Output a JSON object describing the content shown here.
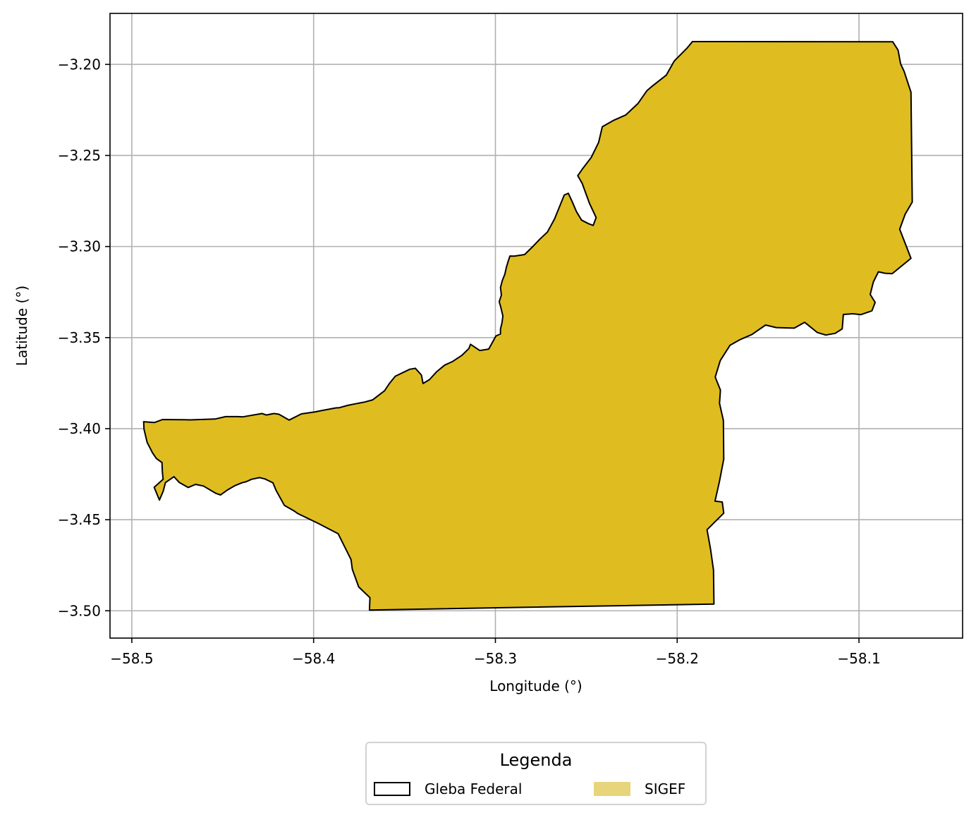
{
  "chart_data": {
    "type": "map",
    "xlabel": "Longitude (°)",
    "ylabel": "Latitude (°)",
    "xlim": [
      -58.512,
      -58.043
    ],
    "ylim": [
      -3.515,
      -3.172
    ],
    "x_ticks": [
      -58.5,
      -58.4,
      -58.3,
      -58.2,
      -58.1
    ],
    "x_tick_labels": [
      "−58.5",
      "−58.4",
      "−58.3",
      "−58.2",
      "−58.1"
    ],
    "y_ticks": [
      -3.2,
      -3.25,
      -3.3,
      -3.35,
      -3.4,
      -3.45,
      -3.5
    ],
    "y_tick_labels": [
      "−3.20",
      "−3.25",
      "−3.30",
      "−3.35",
      "−3.40",
      "−3.45",
      "−3.50"
    ],
    "grid": true,
    "legend": {
      "title": "Legenda",
      "placement": "bottom-center",
      "entries": [
        {
          "label": "Gleba Federal",
          "style": "outline",
          "color": "#000000"
        },
        {
          "label": "SIGEF",
          "style": "fill",
          "color": "#e8d47a"
        }
      ]
    },
    "layers": [
      {
        "name": "Gleba Federal",
        "fill_color": "#dfbd21",
        "edge_color": "#000000",
        "coordinates": [
          [
            -58.1916,
            -3.1875
          ],
          [
            -58.0814,
            -3.1876
          ],
          [
            -58.0785,
            -3.1922
          ],
          [
            -58.0771,
            -3.1997
          ],
          [
            -58.0752,
            -3.2038
          ],
          [
            -58.0714,
            -3.2153
          ],
          [
            -58.0707,
            -3.2756
          ],
          [
            -58.0746,
            -3.2823
          ],
          [
            -58.0776,
            -3.2905
          ],
          [
            -58.0714,
            -3.3065
          ],
          [
            -58.0817,
            -3.3149
          ],
          [
            -58.0856,
            -3.3147
          ],
          [
            -58.0893,
            -3.3139
          ],
          [
            -58.0921,
            -3.3195
          ],
          [
            -58.0938,
            -3.3263
          ],
          [
            -58.0911,
            -3.3307
          ],
          [
            -58.0929,
            -3.3353
          ],
          [
            -58.0989,
            -3.3374
          ],
          [
            -58.1034,
            -3.3369
          ],
          [
            -58.1086,
            -3.3373
          ],
          [
            -58.1092,
            -3.3452
          ],
          [
            -58.1131,
            -3.3477
          ],
          [
            -58.1183,
            -3.3486
          ],
          [
            -58.1229,
            -3.3472
          ],
          [
            -58.1299,
            -3.3416
          ],
          [
            -58.1356,
            -3.3448
          ],
          [
            -58.1455,
            -3.3445
          ],
          [
            -58.1514,
            -3.3431
          ],
          [
            -58.1589,
            -3.3483
          ],
          [
            -58.1652,
            -3.351
          ],
          [
            -58.1709,
            -3.3542
          ],
          [
            -58.1763,
            -3.3626
          ],
          [
            -58.1791,
            -3.3717
          ],
          [
            -58.1762,
            -3.3788
          ],
          [
            -58.1767,
            -3.3861
          ],
          [
            -58.1746,
            -3.3955
          ],
          [
            -58.1744,
            -3.4167
          ],
          [
            -58.1768,
            -3.4292
          ],
          [
            -58.1792,
            -3.4398
          ],
          [
            -58.1752,
            -3.4403
          ],
          [
            -58.1744,
            -3.4464
          ],
          [
            -58.1836,
            -3.4555
          ],
          [
            -58.1817,
            -3.466
          ],
          [
            -58.18,
            -3.4777
          ],
          [
            -58.1798,
            -3.4963
          ],
          [
            -58.3693,
            -3.4996
          ],
          [
            -58.369,
            -3.4928
          ],
          [
            -58.3752,
            -3.4869
          ],
          [
            -58.3787,
            -3.4772
          ],
          [
            -58.3794,
            -3.4719
          ],
          [
            -58.3865,
            -3.4577
          ],
          [
            -58.3977,
            -3.4519
          ],
          [
            -58.4089,
            -3.4465
          ],
          [
            -58.4105,
            -3.4453
          ],
          [
            -58.4161,
            -3.4421
          ],
          [
            -58.4207,
            -3.4338
          ],
          [
            -58.4224,
            -3.4297
          ],
          [
            -58.4269,
            -3.4276
          ],
          [
            -58.4298,
            -3.4269
          ],
          [
            -58.4342,
            -3.4278
          ],
          [
            -58.437,
            -3.4291
          ],
          [
            -58.4394,
            -3.4297
          ],
          [
            -58.4433,
            -3.4313
          ],
          [
            -58.4476,
            -3.4338
          ],
          [
            -58.4512,
            -3.4364
          ],
          [
            -58.454,
            -3.4354
          ],
          [
            -58.4606,
            -3.4315
          ],
          [
            -58.465,
            -3.4306
          ],
          [
            -58.469,
            -3.4323
          ],
          [
            -58.474,
            -3.4295
          ],
          [
            -58.4768,
            -3.4264
          ],
          [
            -58.4815,
            -3.4296
          ],
          [
            -58.4827,
            -3.4343
          ],
          [
            -58.4848,
            -3.4392
          ],
          [
            -58.4877,
            -3.4322
          ],
          [
            -58.4828,
            -3.4278
          ],
          [
            -58.4832,
            -3.4235
          ],
          [
            -58.4834,
            -3.4186
          ],
          [
            -58.4865,
            -3.4164
          ],
          [
            -58.4886,
            -3.4133
          ],
          [
            -58.4916,
            -3.4075
          ],
          [
            -58.4933,
            -3.4003
          ],
          [
            -58.4935,
            -3.3962
          ],
          [
            -58.4875,
            -3.3966
          ],
          [
            -58.4831,
            -3.395
          ],
          [
            -58.4719,
            -3.3951
          ],
          [
            -58.4679,
            -3.3952
          ],
          [
            -58.4542,
            -3.3947
          ],
          [
            -58.4484,
            -3.3934
          ],
          [
            -58.4416,
            -3.3934
          ],
          [
            -58.4389,
            -3.3935
          ],
          [
            -58.4284,
            -3.3917
          ],
          [
            -58.426,
            -3.3925
          ],
          [
            -58.4219,
            -3.3917
          ],
          [
            -58.4191,
            -3.3921
          ],
          [
            -58.4135,
            -3.3953
          ],
          [
            -58.4067,
            -3.3919
          ],
          [
            -58.3996,
            -3.3909
          ],
          [
            -58.3947,
            -3.3899
          ],
          [
            -58.3877,
            -3.3886
          ],
          [
            -58.3858,
            -3.3885
          ],
          [
            -58.3812,
            -3.3872
          ],
          [
            -58.3762,
            -3.3862
          ],
          [
            -58.3719,
            -3.3854
          ],
          [
            -58.3675,
            -3.3842
          ],
          [
            -58.361,
            -3.3792
          ],
          [
            -58.3583,
            -3.3752
          ],
          [
            -58.3551,
            -3.3712
          ],
          [
            -58.3471,
            -3.3674
          ],
          [
            -58.344,
            -3.3669
          ],
          [
            -58.3407,
            -3.3706
          ],
          [
            -58.3398,
            -3.3752
          ],
          [
            -58.3363,
            -3.3731
          ],
          [
            -58.3324,
            -3.3688
          ],
          [
            -58.3279,
            -3.3651
          ],
          [
            -58.3237,
            -3.3632
          ],
          [
            -58.3185,
            -3.3598
          ],
          [
            -58.3146,
            -3.356
          ],
          [
            -58.3137,
            -3.3537
          ],
          [
            -58.3086,
            -3.3571
          ],
          [
            -58.3037,
            -3.3563
          ],
          [
            -58.2997,
            -3.3491
          ],
          [
            -58.2972,
            -3.348
          ],
          [
            -58.2972,
            -3.3453
          ],
          [
            -58.2964,
            -3.342
          ],
          [
            -58.2959,
            -3.3381
          ],
          [
            -58.2971,
            -3.3331
          ],
          [
            -58.2979,
            -3.3303
          ],
          [
            -58.2967,
            -3.3267
          ],
          [
            -58.2972,
            -3.3225
          ],
          [
            -58.2962,
            -3.3187
          ],
          [
            -58.2948,
            -3.3152
          ],
          [
            -58.294,
            -3.3115
          ],
          [
            -58.2931,
            -3.3085
          ],
          [
            -58.292,
            -3.3052
          ],
          [
            -58.2896,
            -3.3053
          ],
          [
            -58.2839,
            -3.3044
          ],
          [
            -58.2795,
            -3.3001
          ],
          [
            -58.2754,
            -3.2958
          ],
          [
            -58.2714,
            -3.2921
          ],
          [
            -58.2675,
            -3.2849
          ],
          [
            -58.2644,
            -3.2773
          ],
          [
            -58.2621,
            -3.2717
          ],
          [
            -58.2599,
            -3.2708
          ],
          [
            -58.2578,
            -3.2753
          ],
          [
            -58.2554,
            -3.2809
          ],
          [
            -58.2526,
            -3.2855
          ],
          [
            -58.2487,
            -3.2875
          ],
          [
            -58.2462,
            -3.2884
          ],
          [
            -58.2446,
            -3.2841
          ],
          [
            -58.2483,
            -3.2762
          ],
          [
            -58.2523,
            -3.2653
          ],
          [
            -58.2547,
            -3.2611
          ],
          [
            -58.2522,
            -3.2575
          ],
          [
            -58.2473,
            -3.2511
          ],
          [
            -58.2432,
            -3.2428
          ],
          [
            -58.2412,
            -3.2342
          ],
          [
            -58.2353,
            -3.2309
          ],
          [
            -58.2283,
            -3.2278
          ],
          [
            -58.2216,
            -3.2215
          ],
          [
            -58.2167,
            -3.2145
          ],
          [
            -58.2138,
            -3.212
          ],
          [
            -58.206,
            -3.2059
          ],
          [
            -58.2016,
            -3.1981
          ],
          [
            -58.1946,
            -3.1911
          ]
        ]
      }
    ]
  }
}
